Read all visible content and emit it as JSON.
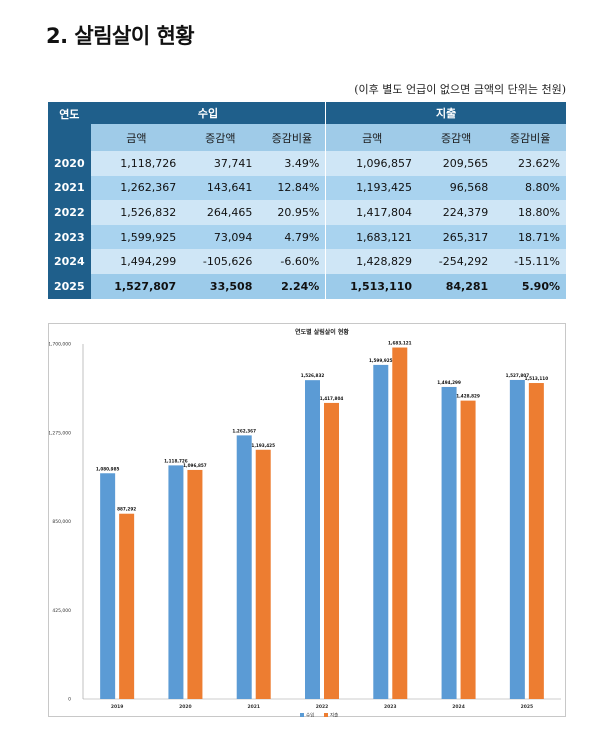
{
  "heading": "2. 살림살이 현황",
  "unit_note": "(이후 별도 언급이 없으면 금액의 단위는 천원)",
  "table": {
    "year_header": "연도",
    "group_income": "수입",
    "group_expense": "지출",
    "col_amount": "금액",
    "col_change": "증감액",
    "col_rate": "증감비율",
    "rows": [
      {
        "year": "2020",
        "in_amount": "1,118,726",
        "in_change": "37,741",
        "in_rate": "3.49%",
        "out_amount": "1,096,857",
        "out_change": "209,565",
        "out_rate": "23.62%"
      },
      {
        "year": "2021",
        "in_amount": "1,262,367",
        "in_change": "143,641",
        "in_rate": "12.84%",
        "out_amount": "1,193,425",
        "out_change": "96,568",
        "out_rate": "8.80%"
      },
      {
        "year": "2022",
        "in_amount": "1,526,832",
        "in_change": "264,465",
        "in_rate": "20.95%",
        "out_amount": "1,417,804",
        "out_change": "224,379",
        "out_rate": "18.80%"
      },
      {
        "year": "2023",
        "in_amount": "1,599,925",
        "in_change": "73,094",
        "in_rate": "4.79%",
        "out_amount": "1,683,121",
        "out_change": "265,317",
        "out_rate": "18.71%"
      },
      {
        "year": "2024",
        "in_amount": "1,494,299",
        "in_change": "-105,626",
        "in_rate": "-6.60%",
        "out_amount": "1,428,829",
        "out_change": "-254,292",
        "out_rate": "-15.11%"
      },
      {
        "year": "2025",
        "in_amount": "1,527,807",
        "in_change": "33,508",
        "in_rate": "2.24%",
        "out_amount": "1,513,110",
        "out_change": "84,281",
        "out_rate": "5.90%"
      }
    ]
  },
  "colors": {
    "header_blue": "#1f5f8b",
    "income": "#5b9bd5",
    "expense": "#ed7d31"
  },
  "chart_data": {
    "type": "bar",
    "title": "연도별 살림살이 현황",
    "categories": [
      "2019",
      "2020",
      "2021",
      "2022",
      "2023",
      "2024",
      "2025"
    ],
    "ylim": [
      0,
      1700000
    ],
    "yticks": [
      0,
      425000,
      850000,
      1275000,
      1700000
    ],
    "ytick_labels": [
      "0",
      "425,000",
      "850,000",
      "1,275,000",
      "1,700,000"
    ],
    "legend_position": "bottom",
    "grid": false,
    "series": [
      {
        "name": "수입",
        "color": "#5b9bd5",
        "values": [
          1080985,
          1118726,
          1262367,
          1526832,
          1599925,
          1494299,
          1527807
        ],
        "labels": [
          "1,080,985",
          "1,118,726",
          "1,262,367",
          "1,526,832",
          "1,599,925",
          "1,494,299",
          "1,527,807"
        ]
      },
      {
        "name": "지출",
        "color": "#ed7d31",
        "values": [
          887292,
          1096857,
          1193425,
          1417804,
          1683121,
          1428829,
          1513110
        ],
        "labels": [
          "887,292",
          "1,096,857",
          "1,193,425",
          "1,417,804",
          "1,683,121",
          "1,428,829",
          "1,513,110"
        ]
      }
    ]
  }
}
